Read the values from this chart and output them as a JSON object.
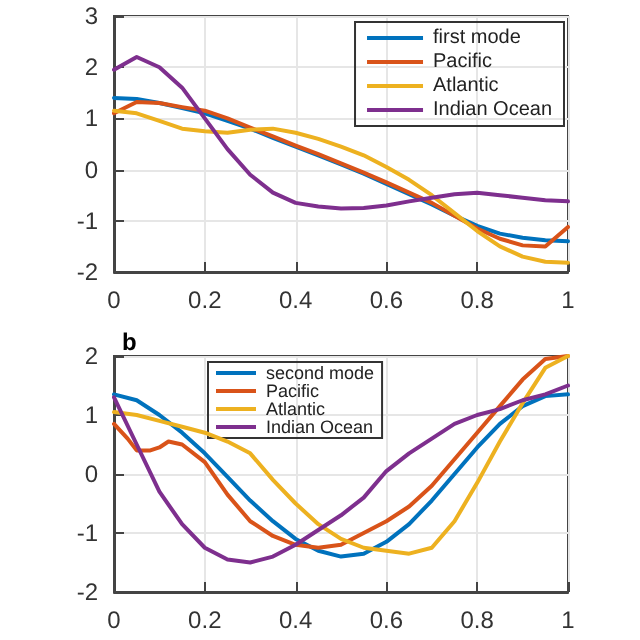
{
  "chart_data": [
    {
      "type": "line",
      "x": [
        0,
        0.05,
        0.1,
        0.15,
        0.2,
        0.25,
        0.3,
        0.35,
        0.4,
        0.45,
        0.5,
        0.55,
        0.6,
        0.65,
        0.7,
        0.75,
        0.8,
        0.85,
        0.9,
        0.95,
        1
      ],
      "xlim": [
        0,
        1
      ],
      "xticks": [
        0,
        0.2,
        0.4,
        0.6,
        0.8,
        1
      ],
      "ylim": [
        -2,
        3
      ],
      "yticks": [
        -2,
        -1,
        0,
        1,
        2,
        3
      ],
      "grid": true,
      "legend": "top right",
      "series": [
        {
          "name": "first mode",
          "color": "#0072bd",
          "values": [
            1.4,
            1.38,
            1.3,
            1.2,
            1.1,
            0.95,
            0.8,
            0.62,
            0.45,
            0.28,
            0.1,
            -0.08,
            -0.28,
            -0.48,
            -0.68,
            -0.9,
            -1.1,
            -1.25,
            -1.33,
            -1.38,
            -1.4
          ]
        },
        {
          "name": "Pacific",
          "color": "#d95319",
          "values": [
            1.1,
            1.32,
            1.3,
            1.22,
            1.15,
            1.0,
            0.82,
            0.65,
            0.47,
            0.3,
            0.12,
            -0.06,
            -0.25,
            -0.45,
            -0.65,
            -0.9,
            -1.15,
            -1.35,
            -1.48,
            -1.5,
            -1.12
          ]
        },
        {
          "name": "Atlantic",
          "color": "#edb120",
          "values": [
            1.15,
            1.1,
            0.95,
            0.8,
            0.75,
            0.72,
            0.78,
            0.8,
            0.72,
            0.6,
            0.45,
            0.28,
            0.05,
            -0.2,
            -0.5,
            -0.85,
            -1.2,
            -1.5,
            -1.7,
            -1.8,
            -1.82
          ]
        },
        {
          "name": "Indian Ocean",
          "color": "#7e2f8e",
          "values": [
            1.95,
            2.2,
            2.0,
            1.6,
            1.0,
            0.4,
            -0.1,
            -0.45,
            -0.65,
            -0.72,
            -0.76,
            -0.75,
            -0.7,
            -0.62,
            -0.55,
            -0.48,
            -0.45,
            -0.5,
            -0.55,
            -0.6,
            -0.62
          ]
        }
      ]
    },
    {
      "type": "line",
      "title": "b",
      "x": [
        0,
        0.05,
        0.1,
        0.15,
        0.2,
        0.25,
        0.3,
        0.35,
        0.4,
        0.45,
        0.5,
        0.55,
        0.6,
        0.65,
        0.7,
        0.75,
        0.8,
        0.85,
        0.9,
        0.95,
        1
      ],
      "xlim": [
        0,
        1
      ],
      "xticks": [
        0,
        0.2,
        0.4,
        0.6,
        0.8,
        1
      ],
      "ylim": [
        -2,
        2
      ],
      "yticks": [
        -2,
        -1,
        0,
        1,
        2
      ],
      "grid": true,
      "legend": "top",
      "series": [
        {
          "name": "second mode",
          "color": "#0072bd",
          "values": [
            1.35,
            1.25,
            1.0,
            0.7,
            0.35,
            -0.05,
            -0.45,
            -0.8,
            -1.1,
            -1.3,
            -1.4,
            -1.35,
            -1.15,
            -0.85,
            -0.45,
            0.0,
            0.45,
            0.85,
            1.15,
            1.32,
            1.35
          ]
        },
        {
          "name": "Pacific",
          "color": "#d95319",
          "x": [
            0,
            0.03,
            0.05,
            0.08,
            0.1,
            0.12,
            0.15,
            0.2,
            0.25,
            0.3,
            0.35,
            0.4,
            0.45,
            0.5,
            0.55,
            0.6,
            0.65,
            0.7,
            0.75,
            0.8,
            0.85,
            0.9,
            0.95,
            1
          ],
          "values": [
            0.85,
            0.6,
            0.4,
            0.4,
            0.45,
            0.55,
            0.5,
            0.2,
            -0.35,
            -0.8,
            -1.05,
            -1.2,
            -1.25,
            -1.2,
            -1.0,
            -0.8,
            -0.55,
            -0.2,
            0.25,
            0.7,
            1.15,
            1.6,
            1.95,
            2.0
          ]
        },
        {
          "name": "Atlantic",
          "color": "#edb120",
          "values": [
            1.05,
            1.0,
            0.9,
            0.8,
            0.7,
            0.55,
            0.35,
            -0.1,
            -0.5,
            -0.85,
            -1.1,
            -1.25,
            -1.3,
            -1.35,
            -1.25,
            -0.8,
            -0.15,
            0.55,
            1.2,
            1.8,
            2.0
          ]
        },
        {
          "name": "Indian Ocean",
          "color": "#7e2f8e",
          "values": [
            1.3,
            0.5,
            -0.3,
            -0.85,
            -1.25,
            -1.45,
            -1.5,
            -1.4,
            -1.2,
            -0.95,
            -0.7,
            -0.4,
            0.05,
            0.35,
            0.6,
            0.85,
            1.0,
            1.1,
            1.25,
            1.35,
            1.5
          ]
        }
      ]
    }
  ]
}
